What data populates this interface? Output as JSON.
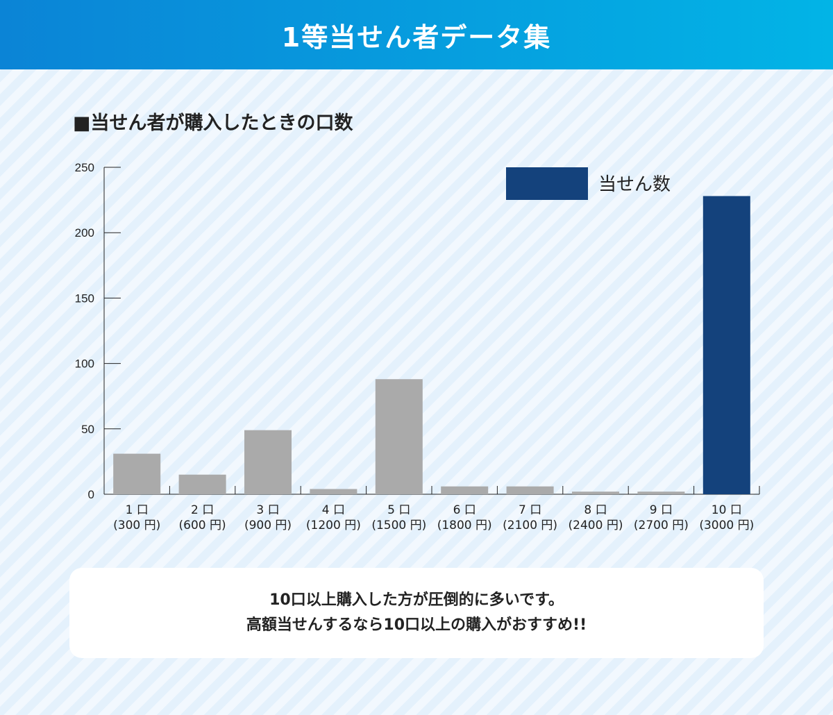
{
  "header": {
    "title": "1等当せん者データ集"
  },
  "colors": {
    "highlight_bar": "#14427c",
    "default_bar": "#aaaaaa",
    "header_start": "#0b84d6",
    "header_end": "#02b4e6"
  },
  "chart_data": {
    "type": "bar",
    "title": "■当せん者が購入したときの口数",
    "xlabel": "",
    "ylabel": "",
    "ylim": [
      0,
      250
    ],
    "yticks": [
      0,
      50,
      100,
      150,
      200,
      250
    ],
    "categories": [
      {
        "count": "1 口",
        "price": "(300 円)"
      },
      {
        "count": "2 口",
        "price": "(600 円)"
      },
      {
        "count": "3 口",
        "price": "(900 円)"
      },
      {
        "count": "4 口",
        "price": "(1200 円)"
      },
      {
        "count": "5 口",
        "price": "(1500 円)"
      },
      {
        "count": "6 口",
        "price": "(1800 円)"
      },
      {
        "count": "7 口",
        "price": "(2100 円)"
      },
      {
        "count": "8 口",
        "price": "(2400 円)"
      },
      {
        "count": "9 口",
        "price": "(2700 円)"
      },
      {
        "count": "10 口",
        "price": "(3000 円)"
      }
    ],
    "series": [
      {
        "name": "当せん数",
        "values": [
          31,
          15,
          49,
          4,
          88,
          6,
          6,
          2,
          2,
          228
        ]
      }
    ],
    "highlight_index": 9,
    "legend": {
      "label": "当せん数",
      "position": "top-right"
    },
    "grid": false
  },
  "note": {
    "line1": "10口以上購入した方が圧倒的に多いです。",
    "line2": "高額当せんするなら10口以上の購入がおすすめ!!"
  }
}
